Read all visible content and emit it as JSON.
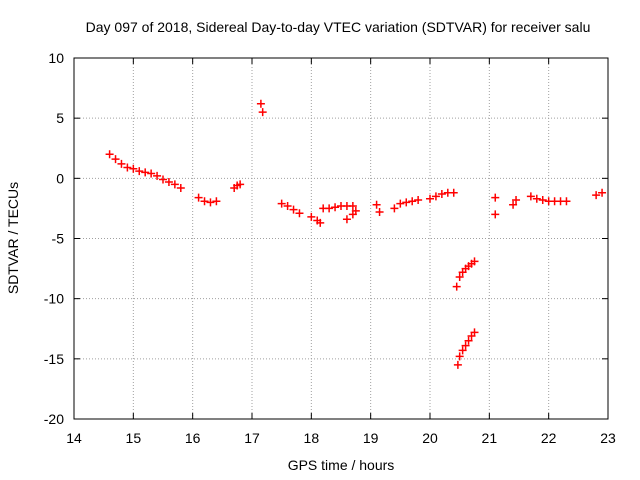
{
  "chart_data": {
    "type": "scatter",
    "title": "Day 097 of 2018, Sidereal Day-to-day VTEC variation (SDTVAR) for receiver salu",
    "xlabel": "GPS time / hours",
    "ylabel": "SDTVAR / TECUs",
    "xlim": [
      14,
      23
    ],
    "ylim": [
      -20,
      10
    ],
    "xticks": [
      "14",
      "15",
      "16",
      "17",
      "18",
      "19",
      "20",
      "21",
      "22",
      "23"
    ],
    "yticks": [
      "10",
      "5",
      "0",
      "-5",
      "-10",
      "-15",
      "-20"
    ],
    "grid": true,
    "marker": "+",
    "series_color": "#ff0000",
    "segments": [
      {
        "x": [
          14.6,
          14.7,
          14.8,
          14.9,
          15.0,
          15.1,
          15.2,
          15.3,
          15.4,
          15.5,
          15.6,
          15.7,
          15.8
        ],
        "y": [
          2.0,
          1.6,
          1.2,
          0.9,
          0.8,
          0.6,
          0.5,
          0.4,
          0.2,
          -0.1,
          -0.3,
          -0.5,
          -0.8
        ]
      },
      {
        "x": [
          16.1,
          16.2,
          16.3,
          16.4
        ],
        "y": [
          -1.6,
          -1.9,
          -2.0,
          -1.9
        ]
      },
      {
        "x": [
          16.7,
          16.75,
          16.8
        ],
        "y": [
          -0.8,
          -0.6,
          -0.5
        ]
      },
      {
        "x": [
          17.15,
          17.18
        ],
        "y": [
          6.2,
          5.5
        ]
      },
      {
        "x": [
          17.5,
          17.6,
          17.7,
          17.8
        ],
        "y": [
          -2.1,
          -2.3,
          -2.6,
          -2.9
        ]
      },
      {
        "x": [
          18.0,
          18.1,
          18.15
        ],
        "y": [
          -3.2,
          -3.5,
          -3.7
        ]
      },
      {
        "x": [
          18.2,
          18.3,
          18.4,
          18.5,
          18.6,
          18.7
        ],
        "y": [
          -2.5,
          -2.5,
          -2.4,
          -2.3,
          -2.3,
          -2.3
        ]
      },
      {
        "x": [
          18.6,
          18.7,
          18.75
        ],
        "y": [
          -3.4,
          -3.0,
          -2.7
        ]
      },
      {
        "x": [
          19.1,
          19.15
        ],
        "y": [
          -2.2,
          -2.8
        ]
      },
      {
        "x": [
          19.4,
          19.5,
          19.6,
          19.7,
          19.8
        ],
        "y": [
          -2.5,
          -2.1,
          -2.0,
          -1.9,
          -1.8
        ]
      },
      {
        "x": [
          20.0,
          20.1,
          20.2,
          20.3,
          20.4
        ],
        "y": [
          -1.7,
          -1.5,
          -1.3,
          -1.2,
          -1.2
        ]
      },
      {
        "x": [
          20.45,
          20.5,
          20.55,
          20.6,
          20.65,
          20.7,
          20.75
        ],
        "y": [
          -9.0,
          -8.2,
          -7.8,
          -7.5,
          -7.3,
          -7.1,
          -6.9
        ]
      },
      {
        "x": [
          20.47,
          20.5,
          20.55,
          20.6,
          20.65,
          20.7,
          20.75
        ],
        "y": [
          -15.5,
          -14.8,
          -14.3,
          -13.9,
          -13.5,
          -13.1,
          -12.8
        ]
      },
      {
        "x": [
          21.1,
          21.1
        ],
        "y": [
          -1.6,
          -3.0
        ]
      },
      {
        "x": [
          21.4,
          21.45
        ],
        "y": [
          -2.2,
          -1.8
        ]
      },
      {
        "x": [
          21.7,
          21.8,
          21.9,
          22.0,
          22.1,
          22.2,
          22.3
        ],
        "y": [
          -1.5,
          -1.7,
          -1.8,
          -1.9,
          -1.9,
          -1.9,
          -1.9
        ]
      },
      {
        "x": [
          22.8,
          22.9
        ],
        "y": [
          -1.4,
          -1.2
        ]
      }
    ]
  }
}
